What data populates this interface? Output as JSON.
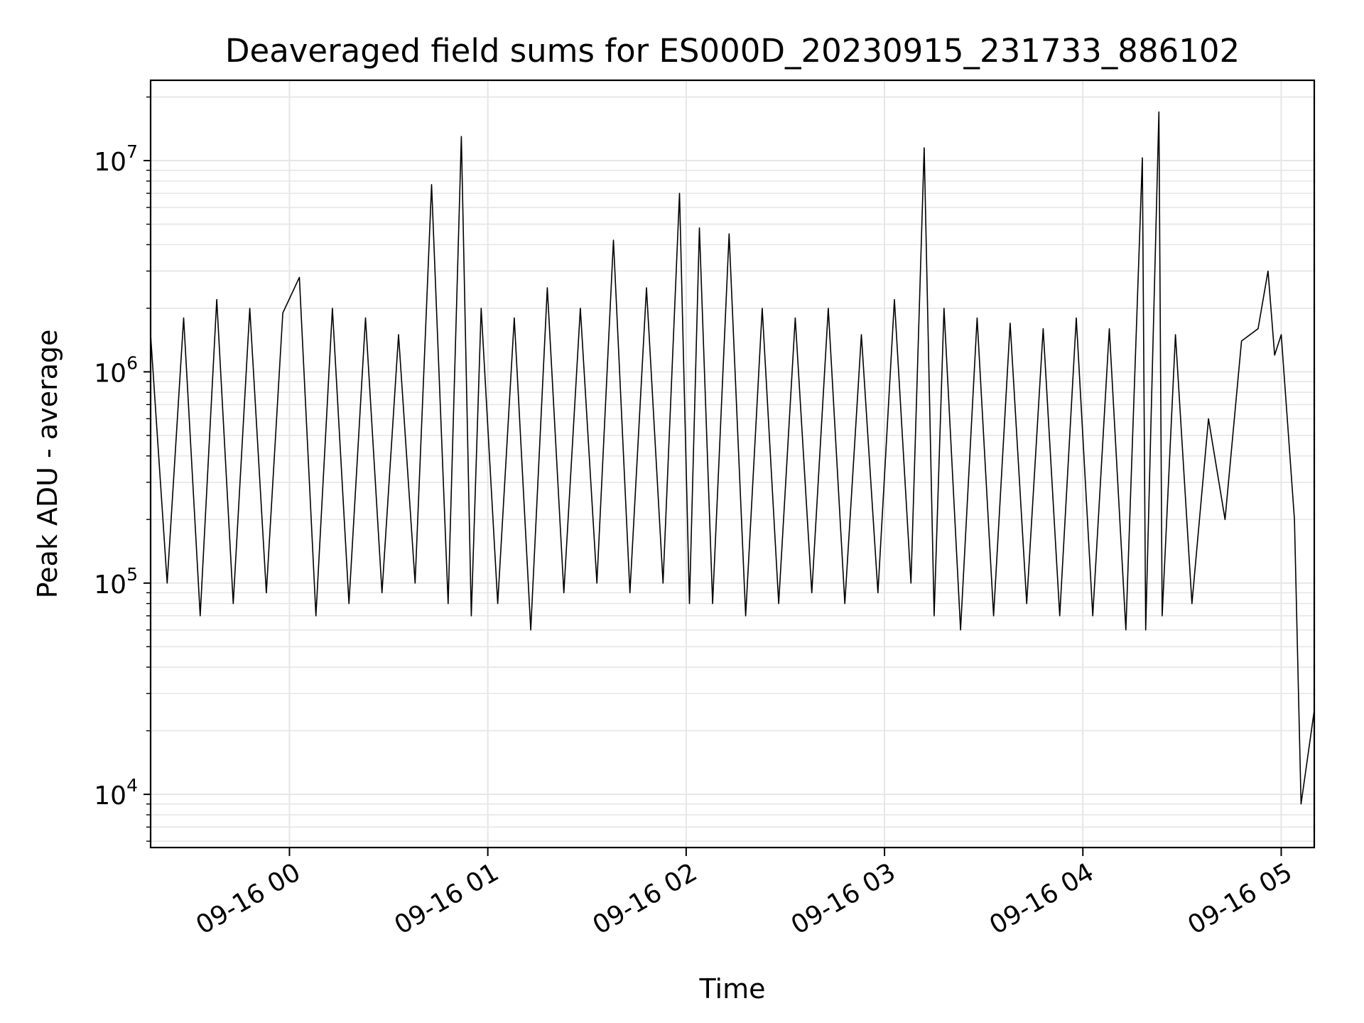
{
  "chart_data": {
    "type": "line",
    "title": "Deaveraged field sums for ES000D_20230915_231733_886102",
    "xlabel": "Time",
    "ylabel": "Peak ADU - average",
    "yscale": "log",
    "xlim": [
      "09-15 23:18",
      "09-16 05:10"
    ],
    "ylim": [
      5600,
      24000000
    ],
    "grid": true,
    "x_tick_labels": [
      "09-16 00",
      "09-16 01",
      "09-16 02",
      "09-16 03",
      "09-16 04",
      "09-16 05"
    ],
    "y_tick_labels": [
      {
        "base": "10",
        "exp": "4"
      },
      {
        "base": "10",
        "exp": "5"
      },
      {
        "base": "10",
        "exp": "6"
      },
      {
        "base": "10",
        "exp": "7"
      }
    ],
    "colors": {
      "line": "#000000",
      "grid": "#e6e6e6"
    },
    "series": [
      {
        "x": [
          "09-15 23:18",
          "09-15 23:23",
          "09-15 23:28",
          "09-15 23:33",
          "09-15 23:38",
          "09-15 23:43",
          "09-15 23:48",
          "09-15 23:53",
          "09-15 23:58",
          "09-16 00:03",
          "09-16 00:08",
          "09-16 00:13",
          "09-16 00:18",
          "09-16 00:23",
          "09-16 00:28",
          "09-16 00:33",
          "09-16 00:38",
          "09-16 00:43",
          "09-16 00:48",
          "09-16 00:52",
          "09-16 00:55",
          "09-16 00:58",
          "09-16 01:03",
          "09-16 01:08",
          "09-16 01:13",
          "09-16 01:18",
          "09-16 01:23",
          "09-16 01:28",
          "09-16 01:33",
          "09-16 01:38",
          "09-16 01:43",
          "09-16 01:48",
          "09-16 01:53",
          "09-16 01:58",
          "09-16 02:01",
          "09-16 02:04",
          "09-16 02:08",
          "09-16 02:13",
          "09-16 02:18",
          "09-16 02:23",
          "09-16 02:28",
          "09-16 02:33",
          "09-16 02:38",
          "09-16 02:43",
          "09-16 02:48",
          "09-16 02:53",
          "09-16 02:58",
          "09-16 03:03",
          "09-16 03:08",
          "09-16 03:12",
          "09-16 03:15",
          "09-16 03:18",
          "09-16 03:23",
          "09-16 03:28",
          "09-16 03:33",
          "09-16 03:38",
          "09-16 03:43",
          "09-16 03:48",
          "09-16 03:53",
          "09-16 03:58",
          "09-16 04:03",
          "09-16 04:08",
          "09-16 04:13",
          "09-16 04:18",
          "09-16 04:19",
          "09-16 04:23",
          "09-16 04:24",
          "09-16 04:28",
          "09-16 04:33",
          "09-16 04:38",
          "09-16 04:43",
          "09-16 04:48",
          "09-16 04:53",
          "09-16 04:56",
          "09-16 04:58",
          "09-16 05:00",
          "09-16 05:02",
          "09-16 05:04",
          "09-16 05:06",
          "09-16 05:08",
          "09-16 05:10"
        ],
        "y": [
          1500000,
          100000,
          1800000,
          70000,
          2200000,
          80000,
          2000000,
          90000,
          1900000,
          2800000,
          70000,
          2000000,
          80000,
          1800000,
          90000,
          1500000,
          100000,
          7700000,
          80000,
          13000000,
          70000,
          2000000,
          80000,
          1800000,
          60000,
          2500000,
          90000,
          2000000,
          100000,
          4200000,
          90000,
          2500000,
          100000,
          7000000,
          80000,
          4800000,
          80000,
          4500000,
          70000,
          2000000,
          80000,
          1800000,
          90000,
          2000000,
          80000,
          1500000,
          90000,
          2200000,
          100000,
          11500000,
          70000,
          2000000,
          60000,
          1800000,
          70000,
          1700000,
          80000,
          1600000,
          70000,
          1800000,
          70000,
          1600000,
          60000,
          10300000,
          60000,
          17000000,
          70000,
          1500000,
          80000,
          600000,
          200000,
          1400000,
          1600000,
          3000000,
          1200000,
          1500000,
          550000,
          200000,
          9000,
          15000,
          25000
        ]
      }
    ]
  }
}
